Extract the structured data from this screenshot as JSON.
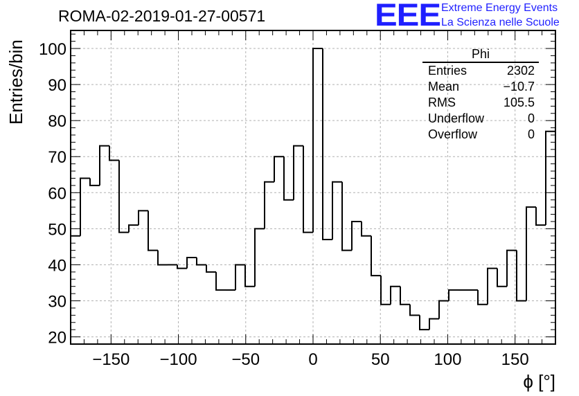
{
  "header": {
    "title": "ROMA-02-2019-01-27-00571",
    "brand_logo": "EEE",
    "brand_line1": "Extreme Energy Events",
    "brand_line2": "La Scienza nelle Scuole"
  },
  "stats": {
    "title": "Phi",
    "rows": [
      {
        "label": "Entries",
        "value": "2302"
      },
      {
        "label": "Mean",
        "value": "−10.7"
      },
      {
        "label": "RMS",
        "value": "105.5"
      },
      {
        "label": "Underflow",
        "value": "0"
      },
      {
        "label": "Overflow",
        "value": "0"
      }
    ]
  },
  "colors": {
    "line": "#000000",
    "grid": "#b0b0b0",
    "brand": "#1f1fff"
  },
  "chart_data": {
    "type": "bar",
    "style": "step-histogram",
    "title": "ROMA-02-2019-01-27-00571",
    "xlabel": "ϕ [°]",
    "ylabel": "Entries/bin",
    "xlim": [
      -180,
      180
    ],
    "ylim": [
      18,
      105
    ],
    "bin_width": 7.2,
    "grid": true,
    "legend": "top-right",
    "x_ticks": [
      -150,
      -100,
      -50,
      0,
      50,
      100,
      150
    ],
    "x_tick_labels": [
      "−150",
      "−100",
      "−50",
      "0",
      "50",
      "100",
      "150"
    ],
    "y_ticks": [
      20,
      30,
      40,
      50,
      60,
      70,
      80,
      90,
      100
    ],
    "y_tick_labels": [
      "20",
      "30",
      "40",
      "50",
      "60",
      "70",
      "80",
      "90",
      "100"
    ],
    "values": [
      48,
      64,
      62,
      73,
      69,
      49,
      51,
      55,
      44,
      40,
      40,
      39,
      42,
      40,
      38,
      33,
      33,
      40,
      34,
      50,
      63,
      70,
      58,
      73,
      49,
      100,
      47,
      63,
      44,
      52,
      48,
      37,
      29,
      34,
      29,
      26,
      22,
      25,
      30,
      33,
      33,
      33,
      29,
      39,
      34,
      44,
      30,
      56,
      51,
      77
    ]
  }
}
